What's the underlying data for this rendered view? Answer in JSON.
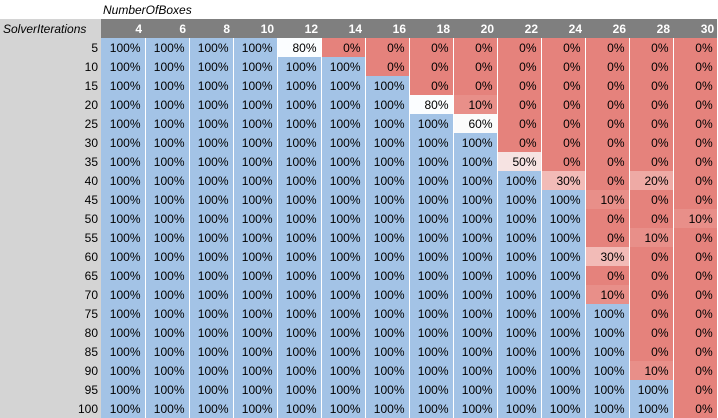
{
  "pivot": {
    "column_field": "NumberOfBoxes",
    "row_field": "SolverIterations",
    "columns": [
      "4",
      "6",
      "8",
      "10",
      "12",
      "14",
      "16",
      "18",
      "20",
      "22",
      "24",
      "26",
      "28",
      "30"
    ],
    "rows": [
      {
        "label": "5",
        "values": [
          "100%",
          "100%",
          "100%",
          "100%",
          "80%",
          "0%",
          "0%",
          "0%",
          "0%",
          "0%",
          "0%",
          "0%",
          "0%",
          "0%"
        ]
      },
      {
        "label": "10",
        "values": [
          "100%",
          "100%",
          "100%",
          "100%",
          "100%",
          "100%",
          "0%",
          "0%",
          "0%",
          "0%",
          "0%",
          "0%",
          "0%",
          "0%"
        ]
      },
      {
        "label": "15",
        "values": [
          "100%",
          "100%",
          "100%",
          "100%",
          "100%",
          "100%",
          "100%",
          "0%",
          "0%",
          "0%",
          "0%",
          "0%",
          "0%",
          "0%"
        ]
      },
      {
        "label": "20",
        "values": [
          "100%",
          "100%",
          "100%",
          "100%",
          "100%",
          "100%",
          "100%",
          "80%",
          "10%",
          "0%",
          "0%",
          "0%",
          "0%",
          "0%"
        ]
      },
      {
        "label": "25",
        "values": [
          "100%",
          "100%",
          "100%",
          "100%",
          "100%",
          "100%",
          "100%",
          "100%",
          "60%",
          "0%",
          "0%",
          "0%",
          "0%",
          "0%"
        ]
      },
      {
        "label": "30",
        "values": [
          "100%",
          "100%",
          "100%",
          "100%",
          "100%",
          "100%",
          "100%",
          "100%",
          "100%",
          "0%",
          "0%",
          "0%",
          "0%",
          "0%"
        ]
      },
      {
        "label": "35",
        "values": [
          "100%",
          "100%",
          "100%",
          "100%",
          "100%",
          "100%",
          "100%",
          "100%",
          "100%",
          "50%",
          "0%",
          "0%",
          "0%",
          "0%"
        ]
      },
      {
        "label": "40",
        "values": [
          "100%",
          "100%",
          "100%",
          "100%",
          "100%",
          "100%",
          "100%",
          "100%",
          "100%",
          "100%",
          "30%",
          "0%",
          "20%",
          "0%"
        ]
      },
      {
        "label": "45",
        "values": [
          "100%",
          "100%",
          "100%",
          "100%",
          "100%",
          "100%",
          "100%",
          "100%",
          "100%",
          "100%",
          "100%",
          "10%",
          "0%",
          "0%"
        ]
      },
      {
        "label": "50",
        "values": [
          "100%",
          "100%",
          "100%",
          "100%",
          "100%",
          "100%",
          "100%",
          "100%",
          "100%",
          "100%",
          "100%",
          "0%",
          "0%",
          "10%"
        ]
      },
      {
        "label": "55",
        "values": [
          "100%",
          "100%",
          "100%",
          "100%",
          "100%",
          "100%",
          "100%",
          "100%",
          "100%",
          "100%",
          "100%",
          "0%",
          "10%",
          "0%"
        ]
      },
      {
        "label": "60",
        "values": [
          "100%",
          "100%",
          "100%",
          "100%",
          "100%",
          "100%",
          "100%",
          "100%",
          "100%",
          "100%",
          "100%",
          "30%",
          "0%",
          "0%"
        ]
      },
      {
        "label": "65",
        "values": [
          "100%",
          "100%",
          "100%",
          "100%",
          "100%",
          "100%",
          "100%",
          "100%",
          "100%",
          "100%",
          "100%",
          "0%",
          "0%",
          "0%"
        ]
      },
      {
        "label": "70",
        "values": [
          "100%",
          "100%",
          "100%",
          "100%",
          "100%",
          "100%",
          "100%",
          "100%",
          "100%",
          "100%",
          "100%",
          "10%",
          "0%",
          "0%"
        ]
      },
      {
        "label": "75",
        "values": [
          "100%",
          "100%",
          "100%",
          "100%",
          "100%",
          "100%",
          "100%",
          "100%",
          "100%",
          "100%",
          "100%",
          "100%",
          "0%",
          "0%"
        ]
      },
      {
        "label": "80",
        "values": [
          "100%",
          "100%",
          "100%",
          "100%",
          "100%",
          "100%",
          "100%",
          "100%",
          "100%",
          "100%",
          "100%",
          "100%",
          "0%",
          "0%"
        ]
      },
      {
        "label": "85",
        "values": [
          "100%",
          "100%",
          "100%",
          "100%",
          "100%",
          "100%",
          "100%",
          "100%",
          "100%",
          "100%",
          "100%",
          "100%",
          "0%",
          "0%"
        ]
      },
      {
        "label": "90",
        "values": [
          "100%",
          "100%",
          "100%",
          "100%",
          "100%",
          "100%",
          "100%",
          "100%",
          "100%",
          "100%",
          "100%",
          "100%",
          "10%",
          "0%"
        ]
      },
      {
        "label": "95",
        "values": [
          "100%",
          "100%",
          "100%",
          "100%",
          "100%",
          "100%",
          "100%",
          "100%",
          "100%",
          "100%",
          "100%",
          "100%",
          "100%",
          "0%"
        ]
      },
      {
        "label": "100",
        "values": [
          "100%",
          "100%",
          "100%",
          "100%",
          "100%",
          "100%",
          "100%",
          "100%",
          "100%",
          "100%",
          "100%",
          "100%",
          "100%",
          "0%"
        ]
      }
    ]
  },
  "colors": {
    "v100": "#a3c3e6",
    "v0": "#e5827c",
    "header_bg": "#7f7f7f",
    "axis_bg": "#d4d4d4"
  }
}
